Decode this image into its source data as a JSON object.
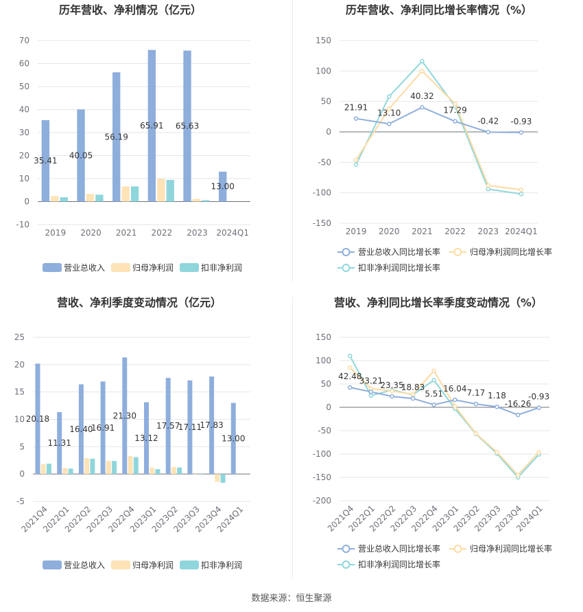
{
  "source_text": "数据来源：恒生聚源",
  "colors": {
    "revenue": "#8eaedc",
    "net_profit": "#fde3b6",
    "deducted_profit": "#8fd6dc",
    "revenue_line": "#8eaedc",
    "net_line": "#fddba3",
    "deducted_line": "#8fd6dc",
    "grid": "#e6e6e6",
    "axis_text": "#6e7079",
    "title": "#333333"
  },
  "chart_data": [
    {
      "type": "bar",
      "title": "历年营收、净利情况（亿元）",
      "categories": [
        "2019",
        "2020",
        "2021",
        "2022",
        "2023",
        "2024Q1"
      ],
      "ylim": [
        -10,
        70
      ],
      "yticks": [
        -10,
        0,
        10,
        20,
        30,
        40,
        50,
        60,
        70
      ],
      "grid": true,
      "legend_position": "bottom",
      "series": [
        {
          "name": "营业总收入",
          "values": [
            35.41,
            40.05,
            56.19,
            65.91,
            65.63,
            13.0
          ],
          "labels": [
            "35.41",
            "40.05",
            "56.19",
            "65.91",
            "65.63",
            "13.00"
          ]
        },
        {
          "name": "归母净利润",
          "values": [
            2.4,
            3.3,
            6.6,
            9.9,
            1.2,
            null
          ]
        },
        {
          "name": "扣非净利润",
          "values": [
            1.9,
            3.0,
            6.6,
            9.4,
            0.6,
            null
          ]
        }
      ]
    },
    {
      "type": "line",
      "title": "历年营收、净利同比增长率情况（%）",
      "categories": [
        "2019",
        "2020",
        "2021",
        "2022",
        "2023",
        "2024Q1"
      ],
      "ylim": [
        -150,
        150
      ],
      "yticks": [
        -150,
        -100,
        -50,
        0,
        50,
        100,
        150
      ],
      "grid": true,
      "legend_position": "bottom",
      "series": [
        {
          "name": "营业总收入同比增长率",
          "values": [
            21.91,
            13.1,
            40.32,
            17.29,
            -0.42,
            -0.93
          ],
          "labels": [
            "21.91",
            "13.10",
            "40.32",
            "17.29",
            "-0.42",
            "-0.93"
          ]
        },
        {
          "name": "归母净利润同比增长率",
          "values": [
            -46,
            38,
            100,
            46,
            -88,
            -95
          ]
        },
        {
          "name": "扣非净利润同比增长率",
          "values": [
            -54,
            58,
            116,
            42,
            -94,
            -102
          ]
        }
      ]
    },
    {
      "type": "bar",
      "title": "营收、净利季度变动情况（亿元）",
      "categories": [
        "2021Q4",
        "2022Q1",
        "2022Q2",
        "2022Q3",
        "2022Q4",
        "2023Q1",
        "2023Q2",
        "2023Q3",
        "2023Q4",
        "2024Q1"
      ],
      "ylim": [
        -5,
        25
      ],
      "yticks": [
        -5,
        0,
        5,
        10,
        15,
        20,
        25
      ],
      "grid": true,
      "legend_position": "bottom",
      "series": [
        {
          "name": "营业总收入",
          "values": [
            20.18,
            11.31,
            16.4,
            16.91,
            21.3,
            13.12,
            17.57,
            17.11,
            17.83,
            13.0
          ],
          "labels": [
            "20.18",
            "11.31",
            "16.40",
            "16.91",
            "21.30",
            "13.12",
            "17.57",
            "17.11",
            "17.83",
            "13.00"
          ]
        },
        {
          "name": "归母净利润",
          "values": [
            1.8,
            1.1,
            2.9,
            2.4,
            3.3,
            1.2,
            1.3,
            0.0,
            -1.4,
            null
          ]
        },
        {
          "name": "扣非净利润",
          "values": [
            1.9,
            1.0,
            2.8,
            2.4,
            3.1,
            0.9,
            1.2,
            0.0,
            -1.6,
            null
          ]
        }
      ]
    },
    {
      "type": "line",
      "title": "营收、净利同比增长率季度变动情况（%）",
      "categories": [
        "2021Q4",
        "2022Q1",
        "2022Q2",
        "2022Q3",
        "2022Q4",
        "2023Q1",
        "2023Q2",
        "2023Q3",
        "2023Q4",
        "2024Q1"
      ],
      "ylim": [
        -200,
        150
      ],
      "yticks": [
        -200,
        -150,
        -100,
        -50,
        0,
        50,
        100,
        150
      ],
      "grid": true,
      "legend_position": "bottom",
      "series": [
        {
          "name": "营业总收入同比增长率",
          "values": [
            42.48,
            33.21,
            23.35,
            18.83,
            5.51,
            16.04,
            7.17,
            1.18,
            -16.26,
            -0.93
          ],
          "labels": [
            "42.48",
            "33.21",
            "23.35",
            "18.83",
            "5.51",
            "16.04",
            "7.17",
            "1.18",
            "-16.26",
            "-0.93"
          ]
        },
        {
          "name": "归母净利润同比增长率",
          "values": [
            85,
            40,
            35,
            28,
            78,
            2,
            -56,
            -96,
            -145,
            -96
          ]
        },
        {
          "name": "扣非净利润同比增长率",
          "values": [
            110,
            25,
            37,
            27,
            58,
            -3,
            -57,
            -99,
            -150,
            -101
          ]
        }
      ]
    }
  ]
}
